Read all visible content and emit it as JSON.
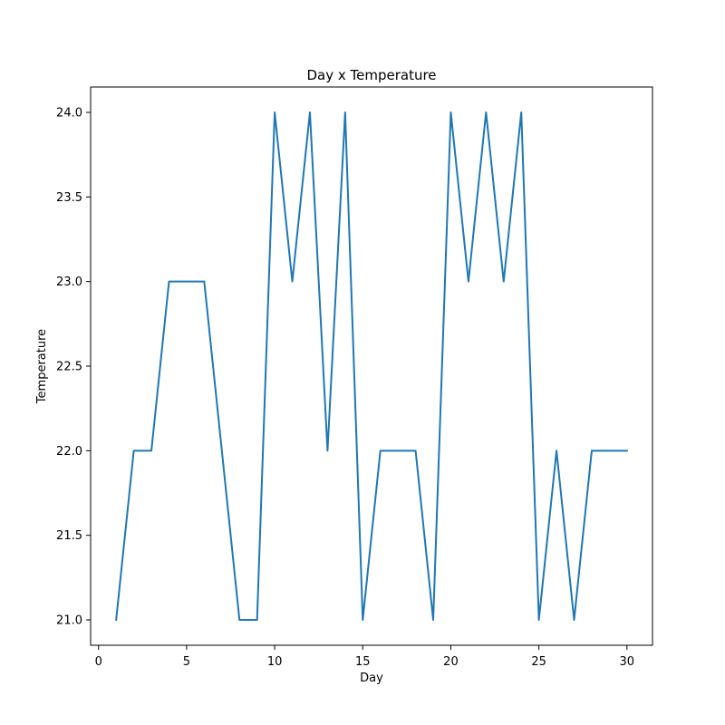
{
  "chart_data": {
    "type": "line",
    "title": "Day x Temperature",
    "xlabel": "Day",
    "ylabel": "Temperature",
    "xlim": [
      -0.45,
      31.45
    ],
    "ylim": [
      20.85,
      24.15
    ],
    "xticks": [
      0,
      5,
      10,
      15,
      20,
      25,
      30
    ],
    "xtick_labels": [
      "0",
      "5",
      "10",
      "15",
      "20",
      "25",
      "30"
    ],
    "yticks": [
      21.0,
      21.5,
      22.0,
      22.5,
      23.0,
      23.5,
      24.0
    ],
    "ytick_labels": [
      "21.0",
      "21.5",
      "22.0",
      "22.5",
      "23.0",
      "23.5",
      "24.0"
    ],
    "grid": false,
    "series": [
      {
        "color": "#1f77b4",
        "x": [
          1,
          2,
          3,
          4,
          5,
          6,
          7,
          8,
          9,
          10,
          11,
          12,
          13,
          14,
          15,
          16,
          17,
          18,
          19,
          20,
          21,
          22,
          23,
          24,
          25,
          26,
          27,
          28,
          29,
          30
        ],
        "y": [
          21,
          22,
          22,
          23,
          23,
          23,
          22,
          21,
          21,
          24,
          23,
          24,
          22,
          24,
          21,
          22,
          22,
          22,
          21,
          24,
          23,
          24,
          23,
          24,
          21,
          22,
          21,
          22,
          22,
          22
        ]
      }
    ]
  }
}
